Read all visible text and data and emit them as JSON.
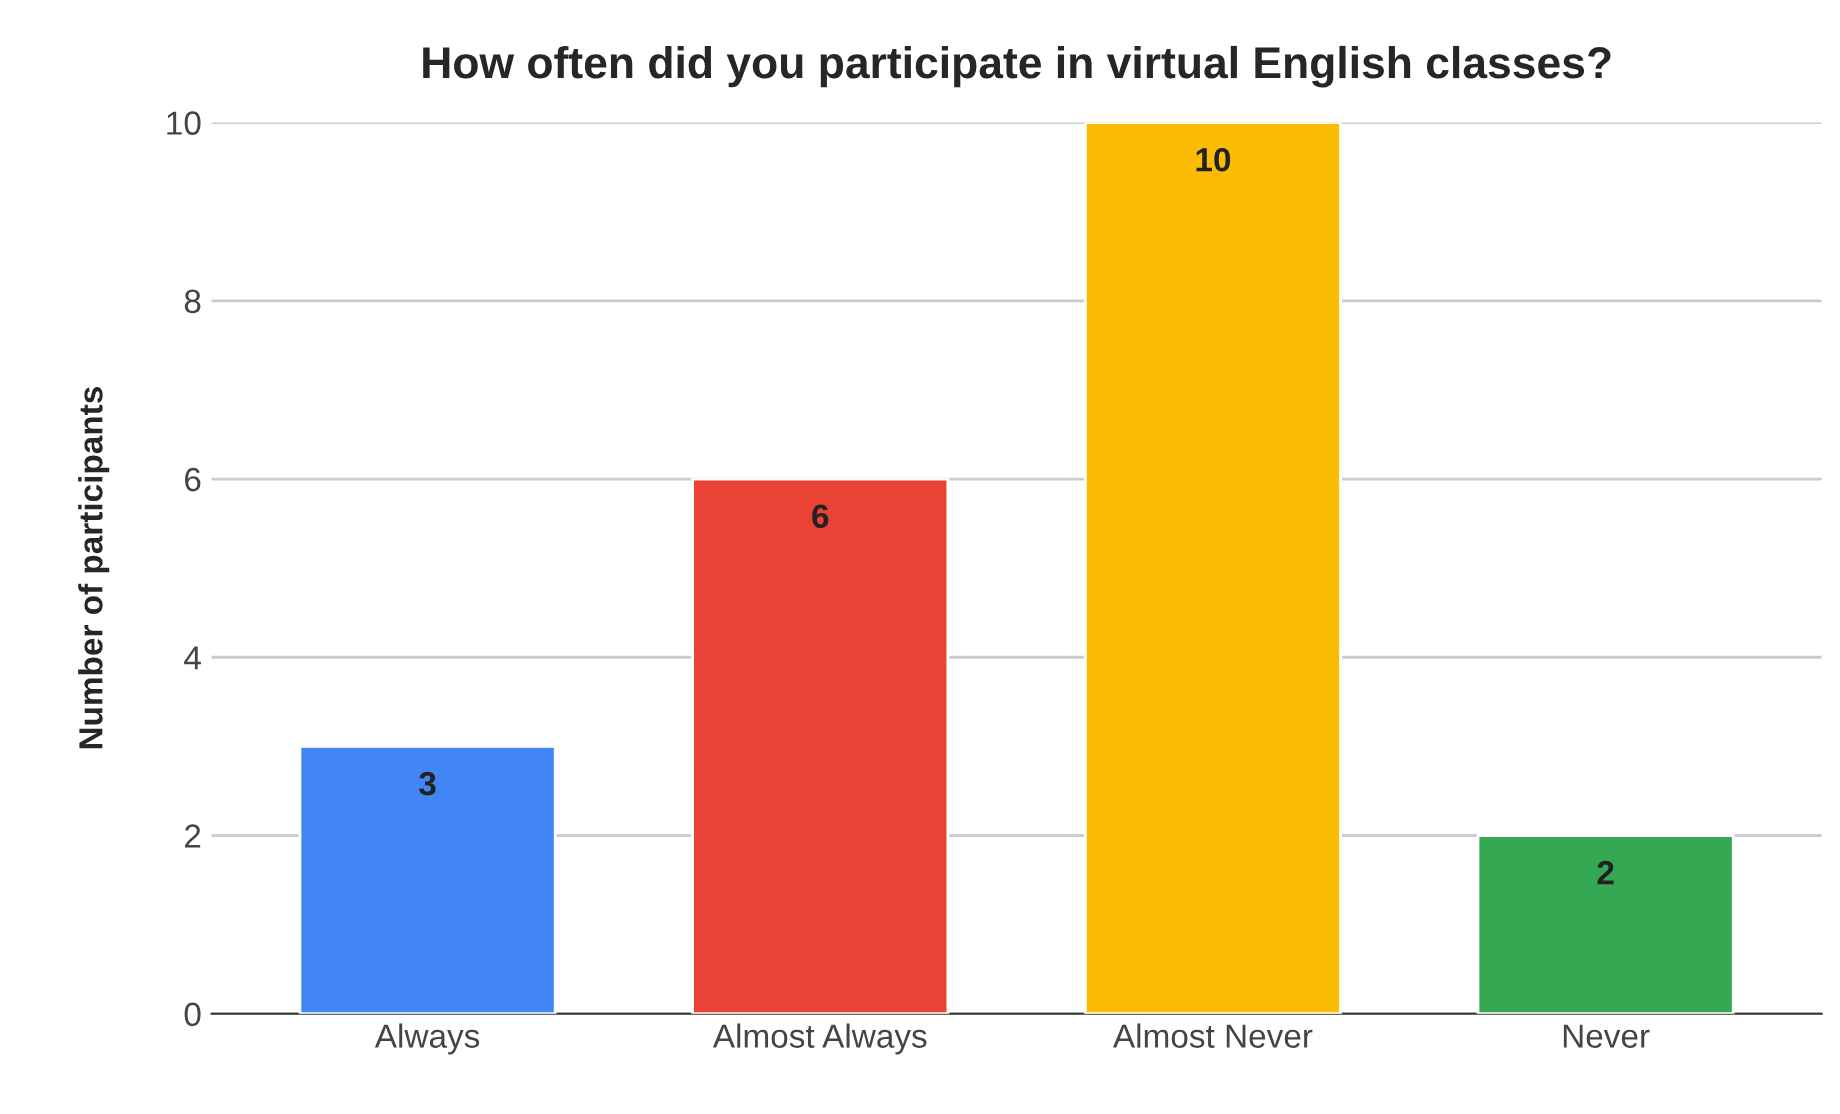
{
  "chart_data": {
    "type": "bar",
    "title": "How often did you participate in virtual English classes?",
    "ylabel": "Number of participants",
    "categories": [
      "Always",
      "Almost Always",
      "Almost Never",
      "Never"
    ],
    "values": [
      3,
      6,
      10,
      2
    ],
    "colors": [
      "#4285f4",
      "#ea4335",
      "#fbbc04",
      "#34a853"
    ],
    "ylim": [
      0,
      10
    ],
    "yticks": [
      0,
      2,
      4,
      6,
      8,
      10
    ],
    "grid": "y",
    "data_labels": true,
    "legend": false
  }
}
